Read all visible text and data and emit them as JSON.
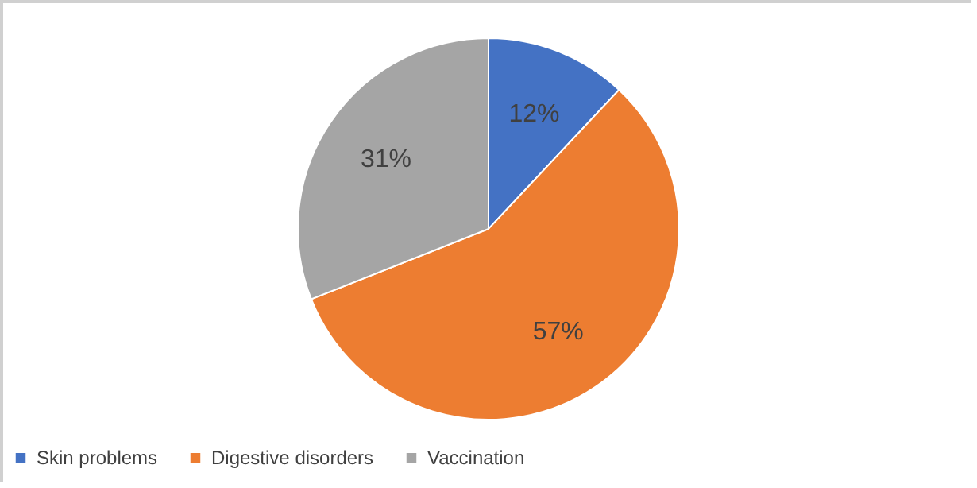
{
  "chart_data": {
    "type": "pie",
    "categories": [
      "Skin problems",
      "Digestive disorders",
      "Vaccination"
    ],
    "values": [
      12,
      57,
      31
    ],
    "colors": [
      "#4472c4",
      "#ed7d31",
      "#a5a5a5"
    ],
    "value_labels": [
      "12%",
      "57%",
      "31%"
    ],
    "legend": "bottom"
  }
}
